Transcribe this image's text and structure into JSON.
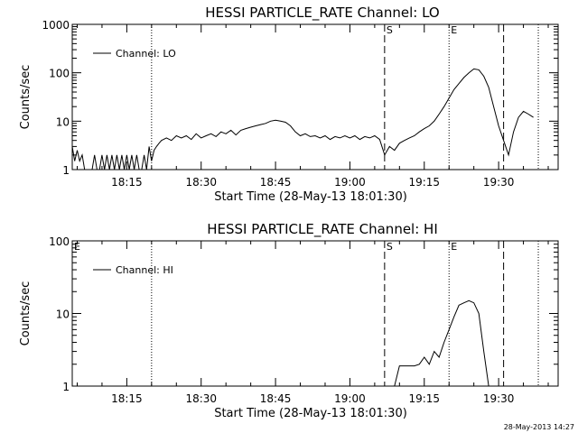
{
  "stamp": "28-May-2013 14:27",
  "chart_data": [
    {
      "type": "line",
      "title": "HESSI PARTICLE_RATE Channel: LO",
      "xlabel": "Start Time (28-May-13 18:01:30)",
      "ylabel": "Counts/sec",
      "yscale": "log",
      "ylim": [
        1,
        1000
      ],
      "xlim": [
        "18:04",
        "19:42"
      ],
      "xticks": [
        "18:15",
        "18:30",
        "18:45",
        "19:00",
        "19:15",
        "19:30"
      ],
      "yticks": [
        "1",
        "10",
        "100",
        "1000"
      ],
      "legend": "top-left",
      "series": [
        {
          "name": "Channel: LO",
          "x": [
            "18:04:00",
            "18:04:30",
            "18:05:00",
            "18:05:30",
            "18:06:00",
            "18:06:30",
            "18:07:00",
            "18:07:30",
            "18:08:00",
            "18:08:30",
            "18:09:00",
            "18:09:30",
            "18:10:00",
            "18:10:30",
            "18:11:00",
            "18:11:30",
            "18:12:00",
            "18:12:30",
            "18:13:00",
            "18:13:30",
            "18:14:00",
            "18:14:30",
            "18:15:00",
            "18:15:30",
            "18:16:00",
            "18:16:30",
            "18:17:00",
            "18:17:30",
            "18:18:00",
            "18:18:30",
            "18:19:00",
            "18:19:30",
            "18:20:00",
            "18:20:30",
            "18:21:00",
            "18:21:30",
            "18:22:00",
            "18:23:00",
            "18:24:00",
            "18:25:00",
            "18:26:00",
            "18:27:00",
            "18:28:00",
            "18:29:00",
            "18:30:00",
            "18:31:00",
            "18:32:00",
            "18:33:00",
            "18:34:00",
            "18:35:00",
            "18:36:00",
            "18:37:00",
            "18:38:00",
            "18:39:00",
            "18:40:00",
            "18:41:00",
            "18:42:00",
            "18:43:00",
            "18:44:00",
            "18:45:00",
            "18:46:00",
            "18:47:00",
            "18:48:00",
            "18:49:00",
            "18:50:00",
            "18:51:00",
            "18:52:00",
            "18:53:00",
            "18:54:00",
            "18:55:00",
            "18:56:00",
            "18:57:00",
            "18:58:00",
            "18:59:00",
            "19:00:00",
            "19:01:00",
            "19:02:00",
            "19:03:00",
            "19:04:00",
            "19:05:00",
            "19:06:00",
            "19:07:00",
            "19:08:00",
            "19:09:00",
            "19:10:00",
            "19:11:00",
            "19:12:00",
            "19:13:00",
            "19:14:00",
            "19:15:00",
            "19:16:00",
            "19:17:00",
            "19:18:00",
            "19:19:00",
            "19:20:00",
            "19:21:00",
            "19:22:00",
            "19:23:00",
            "19:24:00",
            "19:25:00",
            "19:26:00",
            "19:27:00",
            "19:28:00",
            "19:29:00",
            "19:30:00",
            "19:31:00",
            "19:32:00",
            "19:33:00",
            "19:34:00",
            "19:35:00",
            "19:36:00",
            "19:37:00"
          ],
          "y": [
            3,
            1.5,
            2.5,
            1.5,
            2,
            1,
            1,
            1,
            1,
            2,
            1,
            1,
            2,
            1,
            2,
            1,
            2,
            1,
            2,
            1,
            2,
            1,
            2,
            1,
            2,
            1,
            2,
            1,
            1,
            2,
            1,
            3,
            1.5,
            2.5,
            3,
            3.5,
            4,
            4.5,
            4,
            5,
            4.5,
            5,
            4.2,
            5.5,
            4.5,
            5,
            5.5,
            4.8,
            6,
            5.5,
            6.5,
            5.2,
            6.5,
            7,
            7.5,
            8,
            8.5,
            9,
            10,
            10.5,
            10,
            9.5,
            8,
            6,
            5,
            5.5,
            4.8,
            5,
            4.5,
            5,
            4.2,
            4.8,
            4.5,
            5,
            4.5,
            5,
            4.2,
            4.8,
            4.5,
            5,
            4.2,
            2,
            3,
            2.5,
            3.5,
            4,
            4.5,
            5,
            6,
            7,
            8,
            10,
            14,
            20,
            30,
            45,
            60,
            80,
            100,
            120,
            115,
            85,
            50,
            20,
            8,
            4,
            2,
            6,
            12,
            16,
            14,
            12
          ]
        }
      ],
      "markers": [
        {
          "label": "S",
          "time": "19:07",
          "style": "dashed"
        },
        {
          "label": "E",
          "time": "19:20",
          "style": "dotted"
        },
        {
          "label": "",
          "time": "18:20",
          "style": "dotted"
        },
        {
          "label": "",
          "time": "19:31",
          "style": "dashed"
        },
        {
          "label": "",
          "time": "19:38",
          "style": "dotted"
        }
      ]
    },
    {
      "type": "line",
      "title": "HESSI PARTICLE_RATE Channel: HI",
      "xlabel": "Start Time (28-May-13 18:01:30)",
      "ylabel": "Counts/sec",
      "yscale": "log",
      "ylim": [
        1,
        100
      ],
      "xlim": [
        "18:04",
        "19:42"
      ],
      "xticks": [
        "18:15",
        "18:30",
        "18:45",
        "19:00",
        "19:15",
        "19:30"
      ],
      "yticks": [
        "1",
        "10",
        "100"
      ],
      "legend": "top-left",
      "series": [
        {
          "name": "Channel: HI",
          "x": [
            "19:09",
            "19:10",
            "19:11",
            "19:12",
            "19:13",
            "19:14",
            "19:15",
            "19:16",
            "19:17",
            "19:18",
            "19:19",
            "19:20",
            "19:21",
            "19:22",
            "19:23",
            "19:24",
            "19:25",
            "19:26",
            "19:27",
            "19:28"
          ],
          "y": [
            1,
            1.9,
            1.9,
            1.9,
            1.9,
            2,
            2.5,
            2,
            3,
            2.5,
            4,
            6,
            9,
            13,
            14,
            15,
            14,
            10,
            3,
            1
          ]
        }
      ],
      "markers": [
        {
          "label": "E",
          "time": "18:04",
          "style": "none"
        },
        {
          "label": "S",
          "time": "19:07",
          "style": "dashed"
        },
        {
          "label": "E",
          "time": "19:20",
          "style": "dotted"
        },
        {
          "label": "",
          "time": "18:20",
          "style": "dotted"
        },
        {
          "label": "",
          "time": "19:31",
          "style": "dashed"
        },
        {
          "label": "",
          "time": "19:38",
          "style": "dotted"
        }
      ]
    }
  ]
}
